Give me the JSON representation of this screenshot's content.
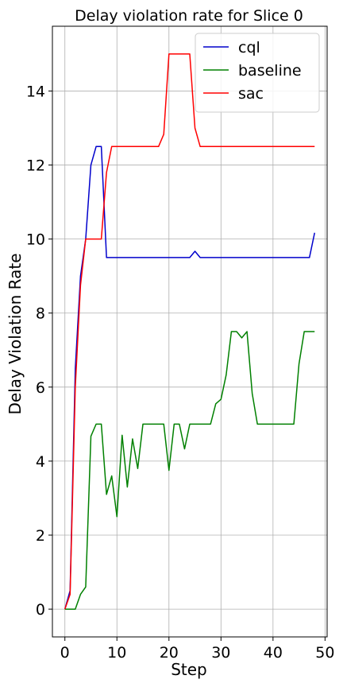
{
  "chart_data": {
    "type": "line",
    "title": "Delay violation rate for Slice 0",
    "xlabel": "Step",
    "ylabel": "Delay Violation Rate",
    "xlim": [
      -2.4,
      50.4
    ],
    "ylim": [
      -0.75,
      15.75
    ],
    "xticks": [
      0,
      10,
      20,
      30,
      40,
      50
    ],
    "yticks": [
      0,
      2,
      4,
      6,
      8,
      10,
      12,
      14
    ],
    "grid": true,
    "legend_position": "top-right",
    "x": [
      0,
      1,
      2,
      3,
      4,
      5,
      6,
      7,
      8,
      9,
      10,
      11,
      12,
      13,
      14,
      15,
      16,
      17,
      18,
      19,
      20,
      21,
      22,
      23,
      24,
      25,
      26,
      27,
      28,
      29,
      30,
      31,
      32,
      33,
      34,
      35,
      36,
      37,
      38,
      39,
      40,
      41,
      42,
      43,
      44,
      45,
      46,
      47,
      48
    ],
    "series": [
      {
        "name": "cql",
        "color": "#0000cc",
        "values": [
          0,
          0.5,
          6.5,
          9,
          10,
          12,
          12.5,
          12.5,
          9.5,
          9.5,
          9.5,
          9.5,
          9.5,
          9.5,
          9.5,
          9.5,
          9.5,
          9.5,
          9.5,
          9.5,
          9.5,
          9.5,
          9.5,
          9.5,
          9.5,
          9.67,
          9.5,
          9.5,
          9.5,
          9.5,
          9.5,
          9.5,
          9.5,
          9.5,
          9.5,
          9.5,
          9.5,
          9.5,
          9.5,
          9.5,
          9.5,
          9.5,
          9.5,
          9.5,
          9.5,
          9.5,
          9.5,
          9.5,
          10.17
        ]
      },
      {
        "name": "baseline",
        "color": "#008000",
        "values": [
          0,
          0,
          0,
          0.4,
          0.6,
          4.67,
          5,
          5,
          3.1,
          3.6,
          2.5,
          4.7,
          3.3,
          4.6,
          3.8,
          5,
          5,
          5,
          5,
          5,
          3.75,
          5,
          5,
          4.33,
          5,
          5,
          5,
          5,
          5,
          5.55,
          5.67,
          6.33,
          7.5,
          7.5,
          7.33,
          7.5,
          5.83,
          5,
          5,
          5,
          5,
          5,
          5,
          5,
          5,
          6.63,
          7.5,
          7.5,
          7.5
        ]
      },
      {
        "name": "sac",
        "color": "#ff0000",
        "values": [
          0,
          0.4,
          6,
          8.75,
          10,
          10,
          10,
          10,
          11.8,
          12.5,
          12.5,
          12.5,
          12.5,
          12.5,
          12.5,
          12.5,
          12.5,
          12.5,
          12.5,
          12.83,
          15,
          15,
          15,
          15,
          15,
          13,
          12.5,
          12.5,
          12.5,
          12.5,
          12.5,
          12.5,
          12.5,
          12.5,
          12.5,
          12.5,
          12.5,
          12.5,
          12.5,
          12.5,
          12.5,
          12.5,
          12.5,
          12.5,
          12.5,
          12.5,
          12.5,
          12.5,
          12.5
        ]
      }
    ]
  }
}
